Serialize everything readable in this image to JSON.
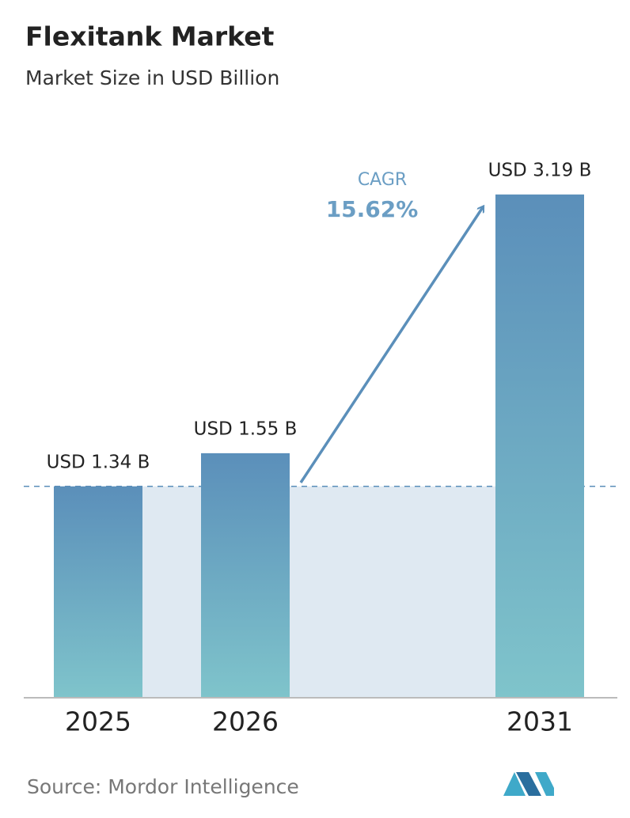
{
  "chart_data": {
    "type": "bar",
    "title": "Flexitank Market",
    "subtitle": "Market Size in USD Billion",
    "categories": [
      "2025",
      "2026",
      "2031"
    ],
    "values": [
      1.34,
      1.55,
      3.19
    ],
    "value_labels": [
      "USD 1.34 B",
      "USD 1.55 B",
      "USD 3.19 B"
    ],
    "color": "#5b8fba",
    "ylim": [
      0,
      3.5
    ],
    "annotation": {
      "label": "CAGR",
      "value": "15.62%"
    },
    "source": "Source:  Mordor Intelligence"
  }
}
